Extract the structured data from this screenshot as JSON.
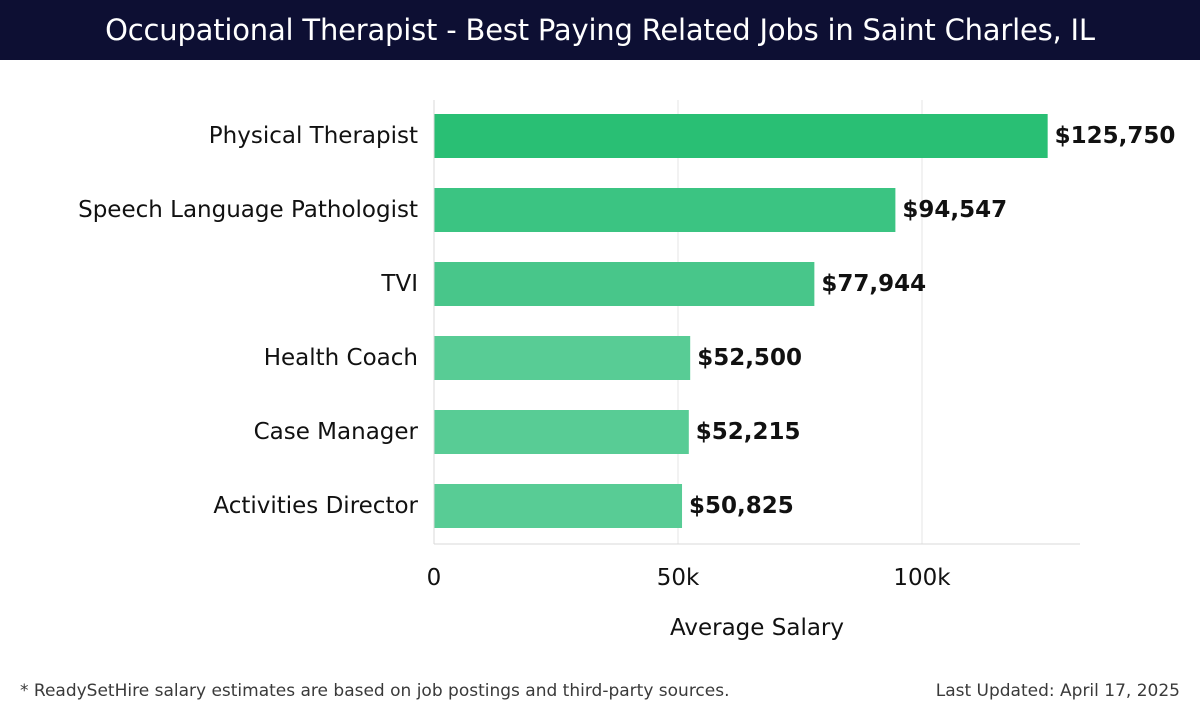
{
  "header": {
    "title": "Occupational Therapist - Best Paying Related Jobs in Saint Charles, IL"
  },
  "chart_data": {
    "type": "bar",
    "orientation": "horizontal",
    "title": "Occupational Therapist - Best Paying Related Jobs in Saint Charles, IL",
    "xlabel": "Average Salary",
    "ylabel": "",
    "xlim": [
      0,
      132000
    ],
    "x_ticks": [
      {
        "value": 0,
        "label": "0"
      },
      {
        "value": 50000,
        "label": "50k"
      },
      {
        "value": 100000,
        "label": "100k"
      }
    ],
    "grid": "vertical",
    "categories": [
      "Physical Therapist",
      "Speech Language Pathologist",
      "TVI",
      "Health Coach",
      "Case Manager",
      "Activities Director"
    ],
    "values": [
      125750,
      94547,
      77944,
      52500,
      52215,
      50825
    ],
    "value_labels": [
      "$125,750",
      "$94,547",
      "$77,944",
      "$52,500",
      "$52,215",
      "$50,825"
    ],
    "bar_colors": [
      "#29bf74",
      "#3bc482",
      "#48c68a",
      "#58cc95",
      "#58cc95",
      "#58cc95"
    ]
  },
  "footer": {
    "note": "* ReadySetHire salary estimates are based on job postings and third-party sources.",
    "updated": "Last Updated: April 17, 2025"
  }
}
